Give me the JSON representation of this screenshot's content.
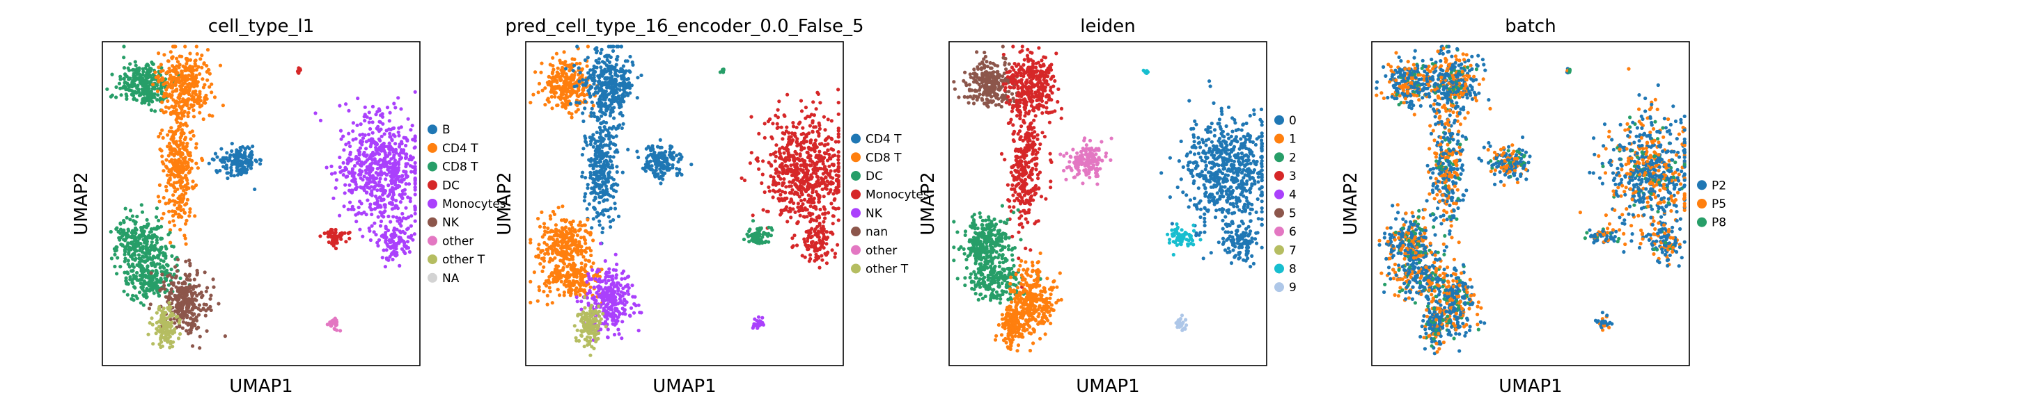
{
  "chart_data": [
    {
      "type": "scatter",
      "title": "cell_type_l1",
      "xlabel": "UMAP1",
      "ylabel": "UMAP2",
      "grid": false,
      "legend_placement": "right",
      "legend": [
        {
          "label": "B",
          "color": "#1f77b4"
        },
        {
          "label": "CD4 T",
          "color": "#ff7f0e"
        },
        {
          "label": "CD8 T",
          "color": "#279e68"
        },
        {
          "label": "DC",
          "color": "#d62728"
        },
        {
          "label": "Monocytes",
          "color": "#aa40fc"
        },
        {
          "label": "NK",
          "color": "#8c564b"
        },
        {
          "label": "other",
          "color": "#e377c2"
        },
        {
          "label": "other T",
          "color": "#b5bd61"
        },
        {
          "label": "NA",
          "color": "#d3d3d3"
        }
      ]
    },
    {
      "type": "scatter",
      "title": "pred_cell_type_16_encoder_0.0_False_5",
      "xlabel": "UMAP1",
      "ylabel": "UMAP2",
      "grid": false,
      "legend_placement": "right",
      "legend": [
        {
          "label": "CD4 T",
          "color": "#1f77b4"
        },
        {
          "label": "CD8 T",
          "color": "#ff7f0e"
        },
        {
          "label": "DC",
          "color": "#279e68"
        },
        {
          "label": "Monocytes",
          "color": "#d62728"
        },
        {
          "label": "NK",
          "color": "#aa40fc"
        },
        {
          "label": "nan",
          "color": "#8c564b"
        },
        {
          "label": "other",
          "color": "#e377c2"
        },
        {
          "label": "other T",
          "color": "#b5bd61"
        }
      ]
    },
    {
      "type": "scatter",
      "title": "leiden",
      "xlabel": "UMAP1",
      "ylabel": "UMAP2",
      "grid": false,
      "legend_placement": "right",
      "legend": [
        {
          "label": "0",
          "color": "#1f77b4"
        },
        {
          "label": "1",
          "color": "#ff7f0e"
        },
        {
          "label": "2",
          "color": "#279e68"
        },
        {
          "label": "3",
          "color": "#d62728"
        },
        {
          "label": "4",
          "color": "#aa40fc"
        },
        {
          "label": "5",
          "color": "#8c564b"
        },
        {
          "label": "6",
          "color": "#e377c2"
        },
        {
          "label": "7",
          "color": "#b5bd61"
        },
        {
          "label": "8",
          "color": "#17becf"
        },
        {
          "label": "9",
          "color": "#aec7e8"
        }
      ]
    },
    {
      "type": "scatter",
      "title": "batch",
      "xlabel": "UMAP1",
      "ylabel": "UMAP2",
      "grid": false,
      "legend_placement": "right",
      "legend": [
        {
          "label": "P2",
          "color": "#1f77b4"
        },
        {
          "label": "P5",
          "color": "#ff7f0e"
        },
        {
          "label": "P8",
          "color": "#279e68"
        }
      ]
    }
  ]
}
